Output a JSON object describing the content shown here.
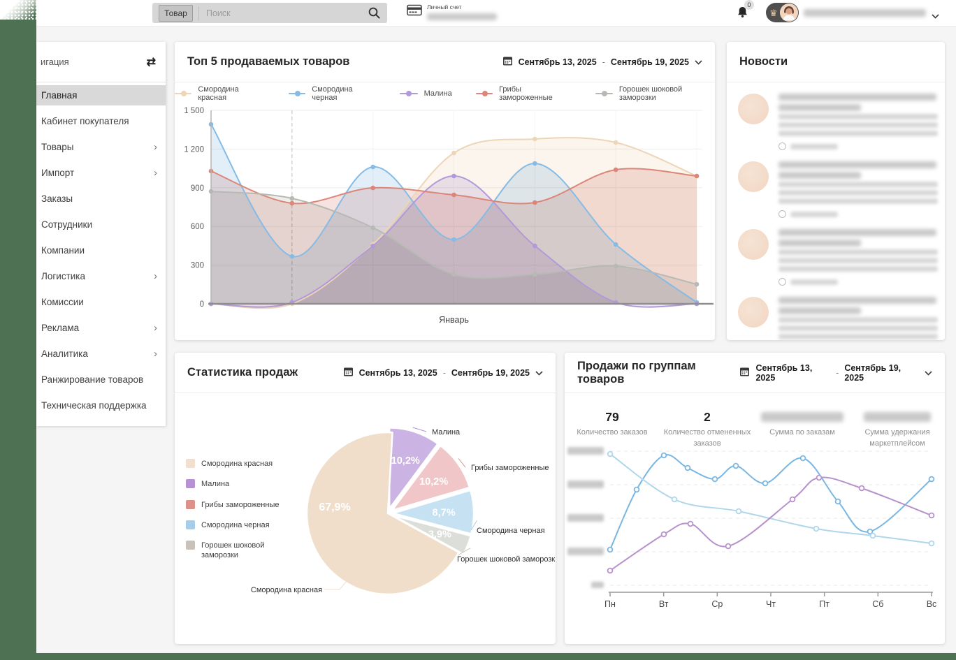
{
  "topbar": {
    "search": {
      "category_label": "Товар",
      "placeholder": "Поиск"
    },
    "account": {
      "label": "Личный счет",
      "value_blurred": true
    },
    "notifications": {
      "badge_count": "0"
    },
    "user": {
      "name_blurred": true
    }
  },
  "sidebar": {
    "title": "игация",
    "items": [
      {
        "label": "Главная",
        "active": true,
        "has_children": false
      },
      {
        "label": "Кабинет покупателя",
        "active": false,
        "has_children": false
      },
      {
        "label": "Товары",
        "active": false,
        "has_children": true
      },
      {
        "label": "Импорт",
        "active": false,
        "has_children": true
      },
      {
        "label": "Заказы",
        "active": false,
        "has_children": false
      },
      {
        "label": "Сотрудники",
        "active": false,
        "has_children": false
      },
      {
        "label": "Компании",
        "active": false,
        "has_children": false
      },
      {
        "label": "Логистика",
        "active": false,
        "has_children": true
      },
      {
        "label": "Комиссии",
        "active": false,
        "has_children": false
      },
      {
        "label": "Реклама",
        "active": false,
        "has_children": true
      },
      {
        "label": "Аналитика",
        "active": false,
        "has_children": true
      },
      {
        "label": "Ранжирование товаров",
        "active": false,
        "has_children": false
      },
      {
        "label": "Техническая поддержка",
        "active": false,
        "has_children": false
      }
    ]
  },
  "panels": {
    "top_products": {
      "title": "Топ 5 продаваемых товаров",
      "date_from": "Сентябрь 13, 2025",
      "date_separator": "-",
      "date_to": "Сентябрь 19, 2025"
    },
    "news": {
      "title": "Новости",
      "items_blurred": 4
    },
    "sales_stats": {
      "title": "Статистика продаж",
      "date_from": "Сентябрь 13, 2025",
      "date_separator": "-",
      "date_to": "Сентябрь 19, 2025"
    },
    "sales_groups": {
      "title": "Продажи по группам товаров",
      "date_from": "Сентябрь 13, 2025",
      "date_separator": "-",
      "date_to": "Сентябрь 19, 2025",
      "stats": [
        {
          "value": "79",
          "label": "Количество заказов",
          "blurred": false
        },
        {
          "value": "2",
          "label": "Количество отмененных заказов",
          "blurred": false
        },
        {
          "value": "",
          "label": "Сумма по заказам",
          "blurred": true
        },
        {
          "value": "",
          "label": "Сумма удержания маркетплейсом",
          "blurred": true
        }
      ]
    }
  },
  "chart_data": [
    {
      "type": "line",
      "title": "Топ 5 продаваемых товаров",
      "x_axis_label": "Январь",
      "x_points": 7,
      "y_ticks": [
        0,
        300,
        600,
        900,
        1200,
        1500
      ],
      "y_tick_labels": [
        "0",
        "300",
        "600",
        "900",
        "1 200",
        "1 500"
      ],
      "crosshair_at_point": 1,
      "legend_position": "top",
      "grid": true,
      "series": [
        {
          "name": "Смородина красная",
          "color": "#EDD5B8",
          "values": [
            0,
            0,
            460,
            1170,
            1280,
            1250,
            990
          ]
        },
        {
          "name": "Смородина черная",
          "color": "#85BBE5",
          "values": [
            1390,
            370,
            1060,
            500,
            1090,
            460,
            10
          ]
        },
        {
          "name": "Малина",
          "color": "#B299D9",
          "values": [
            0,
            10,
            450,
            990,
            450,
            10,
            0
          ]
        },
        {
          "name": "Грибы замороженные",
          "color": "#DB8679",
          "values": [
            1030,
            780,
            900,
            845,
            785,
            1040,
            990
          ]
        },
        {
          "name": "Горошек шоковой заморозки",
          "color": "#B7BAB4",
          "values": [
            870,
            820,
            590,
            225,
            230,
            290,
            150
          ]
        }
      ]
    },
    {
      "type": "pie",
      "title": "Статистика продаж",
      "slices": [
        {
          "label": "Малина",
          "pct": 10.2,
          "pct_label": "10,2%",
          "color": "#B691D4",
          "fill": "#CBB4E3"
        },
        {
          "label": "Грибы замороженные",
          "pct": 10.2,
          "pct_label": "10,2%",
          "color": "#DC9189",
          "fill": "#F1C6C8"
        },
        {
          "label": "Смородина черная",
          "pct": 8.7,
          "pct_label": "8,7%",
          "color": "#A6CDE9",
          "fill": "#C5E1F2"
        },
        {
          "label": "Горошек шоковой заморозки",
          "pct": 3.9,
          "pct_label": "3,9%",
          "color": "#C8C2BB",
          "fill": "#DCDEDA"
        },
        {
          "label": "Смородина красная",
          "pct": 67.9,
          "pct_label": "67,9%",
          "color": "#F2DFCD",
          "fill": "#F0DECB"
        }
      ]
    },
    {
      "type": "line",
      "title": "Продажи по группам товаров",
      "categories": [
        "Пн",
        "Вт",
        "Ср",
        "Чт",
        "Пт",
        "Сб",
        "Вс"
      ],
      "y_axis_blurred": true,
      "y_relative_max": 200,
      "grid": "dashed-horizontal",
      "series": [
        {
          "color": "#79B6E1",
          "points": [
            [
              0,
              53
            ],
            [
              0.5,
              143
            ],
            [
              1,
              194
            ],
            [
              1.45,
              175
            ],
            [
              1.95,
              158
            ],
            [
              2.35,
              178
            ],
            [
              2.9,
              152
            ],
            [
              3.6,
              190
            ],
            [
              4.25,
              125
            ],
            [
              4.85,
              80
            ],
            [
              6,
              158
            ]
          ]
        },
        {
          "color": "#AFD6EC",
          "points": [
            [
              0,
              196
            ],
            [
              1.2,
              128
            ],
            [
              2.4,
              110
            ],
            [
              3.85,
              84
            ],
            [
              4.9,
              74
            ],
            [
              6,
              62
            ]
          ]
        },
        {
          "color": "#B691CC",
          "points": [
            [
              0,
              22
            ],
            [
              1,
              76
            ],
            [
              1.5,
              92
            ],
            [
              2.2,
              58
            ],
            [
              3.4,
              128
            ],
            [
              3.9,
              160
            ],
            [
              4.7,
              145
            ],
            [
              6,
              104
            ]
          ]
        }
      ]
    }
  ]
}
